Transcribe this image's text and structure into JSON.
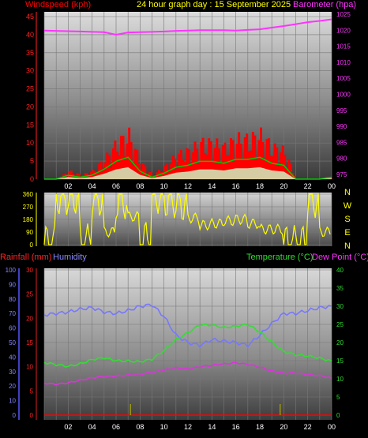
{
  "header": {
    "left_title": "Windspeed (kph)",
    "center_title": "24 hour graph day : 15 September 2025",
    "right_title": "Barometer (hpa)"
  },
  "wind_panel": {
    "axis_left": [
      "0",
      "5",
      "10",
      "15",
      "20",
      "25",
      "30",
      "35",
      "40",
      "45"
    ],
    "axis_right": [
      "975",
      "980",
      "985",
      "990",
      "995",
      "1000",
      "1005",
      "1010",
      "1015",
      "1020",
      "1025"
    ],
    "x_ticks": [
      "02",
      "04",
      "06",
      "08",
      "10",
      "12",
      "14",
      "16",
      "18",
      "20",
      "22",
      "00"
    ]
  },
  "direction_panel": {
    "axis_left": [
      "0",
      "90",
      "180",
      "270",
      "360"
    ],
    "compass": [
      "N",
      "W",
      "S",
      "E",
      "N"
    ]
  },
  "temp_panel": {
    "left_title_rain": "Rainfall (mm)",
    "left_title_humidity": "Humidity",
    "right_title_temp": "Temperature (°C)",
    "right_title_dew": "Dew Point (°C)",
    "axis_humidity": [
      "0",
      "10",
      "20",
      "30",
      "40",
      "50",
      "60",
      "70",
      "80",
      "90",
      "100"
    ],
    "axis_rain": [
      "0",
      "5",
      "10",
      "15",
      "20",
      "25",
      "30"
    ],
    "axis_temp": [
      "0",
      "5",
      "10",
      "15",
      "20",
      "25",
      "30",
      "35",
      "40"
    ]
  },
  "colors": {
    "windspeed": "#ff0000",
    "gust": "#00cc00",
    "average": "#ccffcc",
    "barometer": "#ff33ff",
    "direction": "#ffff00",
    "humidity": "#7777ff",
    "temperature": "#33dd33",
    "dewpoint": "#dd33dd",
    "rainfall": "#aaaa00",
    "rain_axis": "#dd2222"
  },
  "chart_data": [
    {
      "type": "line",
      "title": "24 hour graph day : 15 September 2025",
      "xlabel": "",
      "x_ticks": [
        "02",
        "04",
        "06",
        "08",
        "10",
        "12",
        "14",
        "16",
        "18",
        "20",
        "22",
        "00"
      ],
      "x": [
        0,
        1,
        2,
        3,
        4,
        5,
        6,
        7,
        8,
        9,
        10,
        11,
        12,
        13,
        14,
        15,
        16,
        17,
        18,
        19,
        20,
        21,
        22,
        23,
        24
      ],
      "ylim_left": [
        0,
        45
      ],
      "ylim_right": [
        975,
        1025
      ],
      "series": [
        {
          "name": "Windspeed (kph)",
          "axis": "left",
          "values": [
            0,
            0,
            2,
            1,
            2,
            5,
            9,
            11,
            4,
            1,
            3,
            6,
            7,
            9,
            9,
            8,
            10,
            10,
            11,
            8,
            7,
            0,
            0,
            0,
            1
          ]
        },
        {
          "name": "Barometer (hpa)",
          "axis": "right",
          "values": [
            1019.9,
            1019.8,
            1019.7,
            1019.6,
            1019.5,
            1019.4,
            1018.6,
            1019.3,
            1019.4,
            1019.5,
            1019.6,
            1019.8,
            1019.9,
            1020,
            1020,
            1020,
            1019.9,
            1020.1,
            1020.3,
            1020.8,
            1021.3,
            1021.9,
            1022.5,
            1022.9,
            1023.4
          ]
        }
      ]
    },
    {
      "type": "line",
      "ylabel": "",
      "ylim": [
        0,
        360
      ],
      "x": [
        0,
        1,
        2,
        3,
        4,
        5,
        6,
        7,
        8,
        9,
        10,
        11,
        12,
        13,
        14,
        15,
        16,
        17,
        18,
        19,
        20,
        21,
        22,
        23,
        24
      ],
      "series": [
        {
          "name": "Wind Direction",
          "values": [
            0,
            350,
            355,
            10,
            340,
            90,
            320,
            200,
            30,
            360,
            330,
            300,
            190,
            140,
            150,
            170,
            180,
            150,
            110,
            110,
            0,
            0,
            330,
            90,
            30
          ]
        }
      ]
    },
    {
      "type": "line",
      "title": "",
      "x": [
        0,
        1,
        2,
        3,
        4,
        5,
        6,
        7,
        8,
        9,
        10,
        11,
        12,
        13,
        14,
        15,
        16,
        17,
        18,
        19,
        20,
        21,
        22,
        23,
        24
      ],
      "ylim_humidity": [
        0,
        100
      ],
      "ylim_temp": [
        0,
        40
      ],
      "ylim_rain": [
        0,
        30
      ],
      "series": [
        {
          "name": "Humidity",
          "axis": "humidity",
          "values": [
            69,
            70,
            71,
            73,
            74,
            71,
            70,
            72,
            75,
            76,
            68,
            55,
            50,
            48,
            52,
            51,
            50,
            48,
            55,
            63,
            70,
            70,
            72,
            74,
            75
          ]
        },
        {
          "name": "Temperature (°C)",
          "axis": "temp",
          "values": [
            14.5,
            13.9,
            13.4,
            14.1,
            15.3,
            15.8,
            15.0,
            14.9,
            14.7,
            15.4,
            17.8,
            20.8,
            22.7,
            24.9,
            24.8,
            24.1,
            24.5,
            25.0,
            22.9,
            20.2,
            17.5,
            16.6,
            16.3,
            15.7,
            14.9
          ]
        },
        {
          "name": "Dew Point (°C)",
          "axis": "temp",
          "values": [
            8.8,
            8.5,
            8.9,
            9.6,
            10.3,
            10.6,
            10.8,
            11.0,
            11.3,
            11.7,
            12.4,
            13.0,
            12.7,
            13.3,
            13.7,
            14.1,
            14.4,
            14.0,
            13.2,
            12.2,
            11.5,
            11.6,
            11.1,
            10.9,
            10.2
          ]
        },
        {
          "name": "Rainfall (mm)",
          "axis": "rain",
          "values": [
            0,
            0,
            0,
            0,
            0,
            0,
            0,
            0,
            0,
            0,
            0,
            0,
            0,
            0,
            0,
            0,
            0,
            0,
            0,
            0,
            0,
            0,
            0,
            0,
            0
          ]
        }
      ]
    }
  ]
}
